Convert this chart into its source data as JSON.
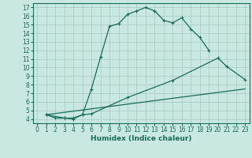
{
  "bg_color": "#c9e8e2",
  "grid_color": "#aacfc8",
  "line_color": "#1a6b5a",
  "xlabel": "Humidex (Indice chaleur)",
  "xlim": [
    -0.5,
    23.5
  ],
  "ylim": [
    3.5,
    17.5
  ],
  "xticks": [
    0,
    1,
    2,
    3,
    4,
    5,
    6,
    7,
    8,
    9,
    10,
    11,
    12,
    13,
    14,
    15,
    16,
    17,
    18,
    19,
    20,
    21,
    22,
    23
  ],
  "yticks": [
    4,
    5,
    6,
    7,
    8,
    9,
    10,
    11,
    12,
    13,
    14,
    15,
    16,
    17
  ],
  "curve1_x": [
    1,
    2,
    3,
    4,
    5,
    6,
    7,
    8,
    9,
    10,
    11,
    12,
    13,
    14,
    15,
    16,
    17,
    18,
    19
  ],
  "curve1_y": [
    4.5,
    4.1,
    4.1,
    4.0,
    4.5,
    7.5,
    11.2,
    14.8,
    15.1,
    16.2,
    16.6,
    17.0,
    16.6,
    15.5,
    15.2,
    15.8,
    14.5,
    13.5,
    12.0
  ],
  "curve2_x": [
    1,
    3,
    4,
    5,
    6,
    10,
    15,
    20,
    21,
    23
  ],
  "curve2_y": [
    4.5,
    4.1,
    4.1,
    4.5,
    4.6,
    6.5,
    8.5,
    11.1,
    10.1,
    8.6
  ],
  "curve3_x": [
    1,
    23
  ],
  "curve3_y": [
    4.5,
    7.5
  ],
  "tick_fontsize": 5.5,
  "xlabel_fontsize": 6.5
}
